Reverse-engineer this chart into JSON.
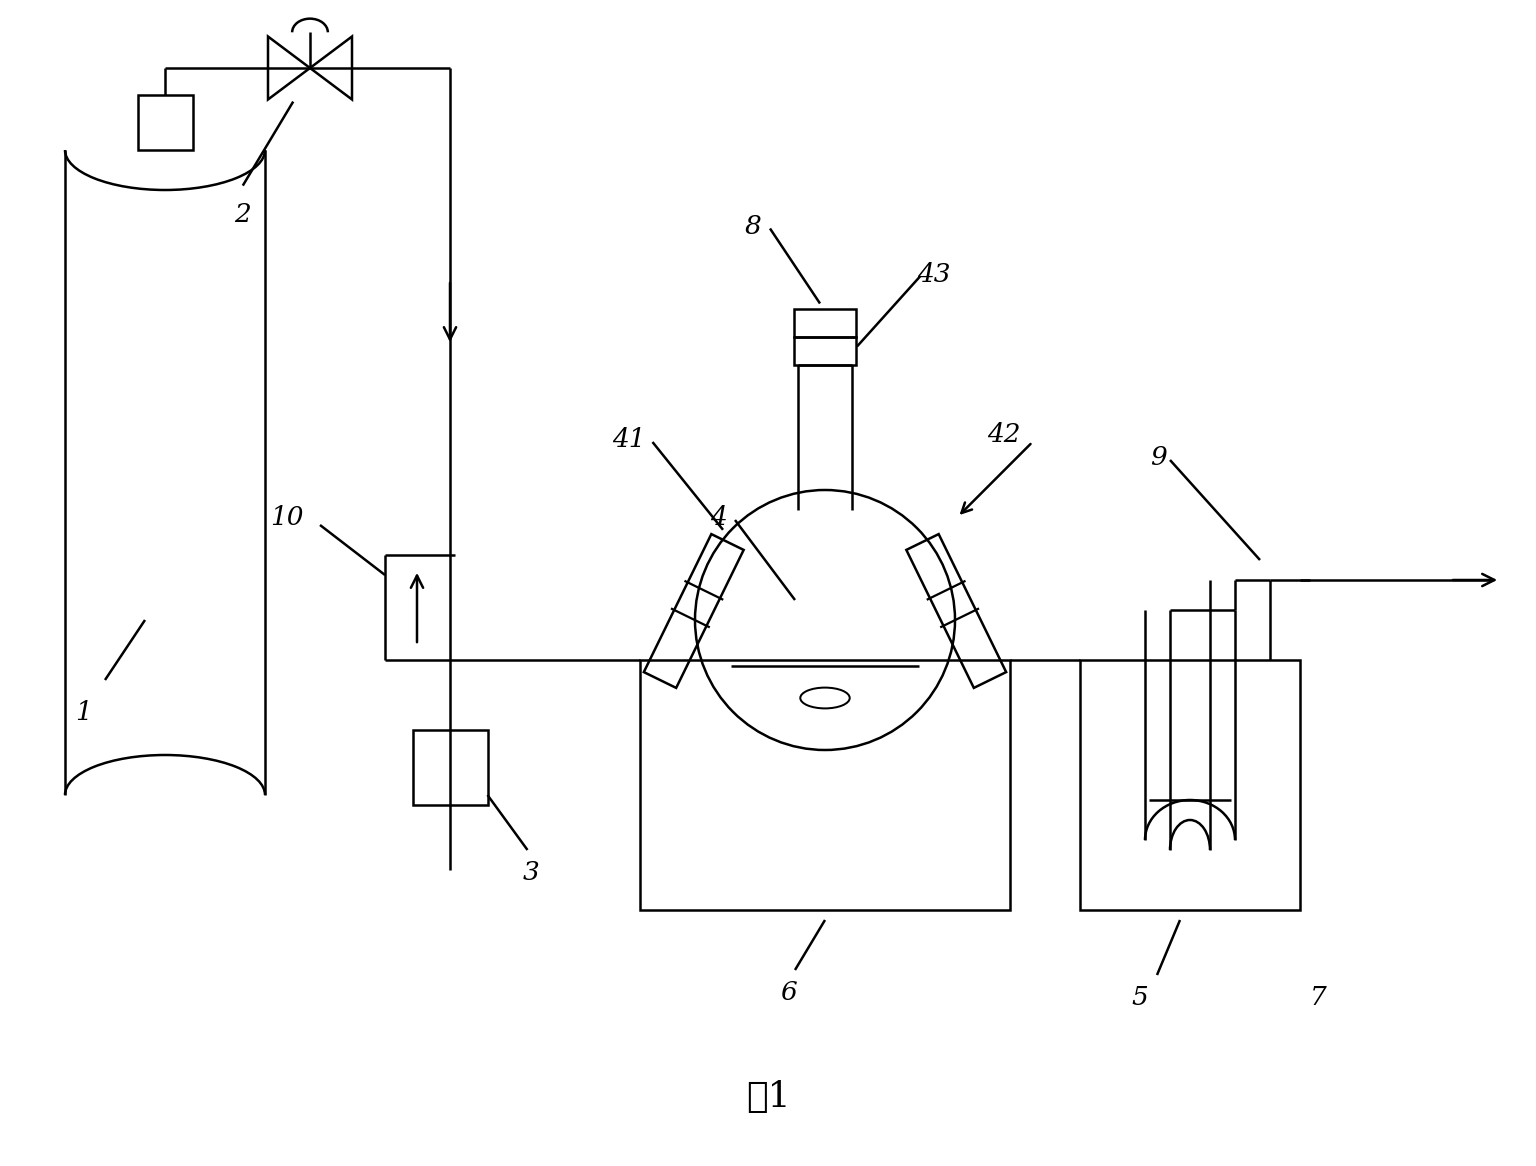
{
  "bg": "#ffffff",
  "lc": "#000000",
  "lw": 1.8,
  "fs": 19,
  "fig_label": "图1"
}
